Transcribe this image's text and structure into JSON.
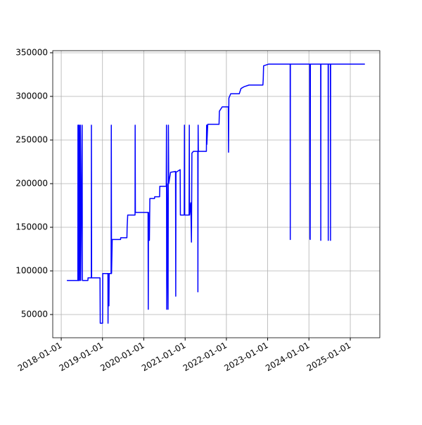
{
  "chart_data": {
    "type": "line",
    "x": [
      "2018-02-20",
      "2018-05-28",
      "2018-05-29",
      "2018-05-30",
      "2018-06-03",
      "2018-06-05",
      "2018-06-10",
      "2018-06-12",
      "2018-06-20",
      "2018-06-22",
      "2018-07-05",
      "2018-07-07",
      "2018-08-25",
      "2018-08-26",
      "2018-09-24",
      "2018-09-25",
      "2018-09-27",
      "2018-12-10",
      "2018-12-12",
      "2019-01-02",
      "2019-01-03",
      "2019-02-18",
      "2019-02-19",
      "2019-02-21",
      "2019-02-27",
      "2019-03-01",
      "2019-03-18",
      "2019-03-20",
      "2019-03-22",
      "2019-03-28",
      "2019-06-10",
      "2019-06-11",
      "2019-08-05",
      "2019-08-07",
      "2019-08-12",
      "2019-10-16",
      "2019-10-17",
      "2019-10-19",
      "2020-02-08",
      "2020-02-10",
      "2020-02-12",
      "2020-02-20",
      "2020-02-24",
      "2020-04-05",
      "2020-04-07",
      "2020-05-20",
      "2020-05-22",
      "2020-07-18",
      "2020-07-20",
      "2020-07-22",
      "2020-07-25",
      "2020-08-03",
      "2020-08-06",
      "2020-08-09",
      "2020-08-25",
      "2020-10-08",
      "2020-10-10",
      "2020-10-12",
      "2020-11-18",
      "2020-11-20",
      "2020-12-24",
      "2020-12-26",
      "2020-12-28",
      "2021-02-05",
      "2021-02-07",
      "2021-02-09",
      "2021-02-20",
      "2021-02-26",
      "2021-03-02",
      "2021-03-15",
      "2021-04-23",
      "2021-04-24",
      "2021-04-26",
      "2021-04-28",
      "2021-07-08",
      "2021-07-10",
      "2021-07-12",
      "2021-07-20",
      "2021-10-28",
      "2021-10-31",
      "2021-11-25",
      "2022-01-18",
      "2022-01-20",
      "2022-01-23",
      "2022-02-08",
      "2022-04-25",
      "2022-05-10",
      "2022-06-05",
      "2022-07-20",
      "2022-11-20",
      "2022-11-23",
      "2022-11-26",
      "2023-01-10",
      "2023-07-19",
      "2023-07-20",
      "2023-07-21",
      "2024-01-08",
      "2024-01-10",
      "2024-01-12",
      "2024-01-14",
      "2024-04-14",
      "2024-04-15",
      "2024-04-16",
      "2024-06-19",
      "2024-06-20",
      "2024-06-21",
      "2024-07-09",
      "2024-07-10",
      "2024-07-11",
      "2025-05-10"
    ],
    "series": [
      {
        "color": "#0000ff",
        "values": [
          89000,
          89000,
          267000,
          89000,
          267000,
          89000,
          267000,
          89000,
          267000,
          89000,
          267000,
          89000,
          89000,
          92000,
          92000,
          267000,
          92000,
          92000,
          40000,
          40000,
          97000,
          97000,
          40000,
          97000,
          60000,
          97000,
          97000,
          267000,
          97000,
          136000,
          136000,
          138000,
          138000,
          150000,
          164000,
          164000,
          267000,
          167000,
          167000,
          56000,
          167000,
          135000,
          183000,
          183000,
          185000,
          185000,
          197000,
          197000,
          267000,
          56000,
          200000,
          56000,
          267000,
          200000,
          213000,
          214000,
          71000,
          213000,
          216000,
          164000,
          164000,
          267000,
          164000,
          164000,
          267000,
          164000,
          178000,
          133000,
          235000,
          237000,
          237000,
          76000,
          267000,
          237000,
          237000,
          267000,
          245000,
          268000,
          268000,
          283000,
          288000,
          288000,
          236000,
          298000,
          303000,
          303000,
          309000,
          311000,
          313000,
          313000,
          320000,
          335000,
          337000,
          337000,
          136000,
          337000,
          337000,
          137000,
          136000,
          337000,
          337000,
          135000,
          337000,
          337000,
          135000,
          337000,
          337000,
          135000,
          337000,
          337000
        ]
      }
    ],
    "xlim": [
      "2017-10-18",
      "2025-09-19"
    ],
    "xticks": [
      "2018-01-01",
      "2019-01-01",
      "2020-01-01",
      "2021-01-01",
      "2022-01-01",
      "2023-01-01",
      "2024-01-01",
      "2025-01-01"
    ],
    "ylim": [
      23400,
      352400
    ],
    "yticks": [
      50000,
      100000,
      150000,
      200000,
      250000,
      300000,
      350000
    ],
    "grid": true
  }
}
